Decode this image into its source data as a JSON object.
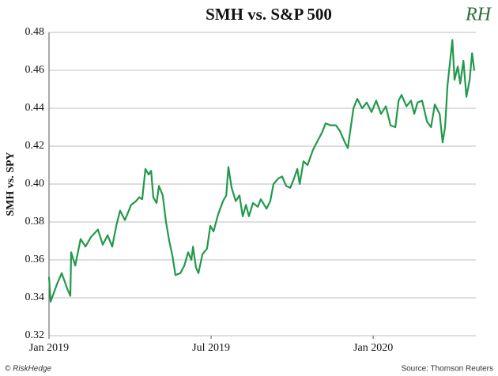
{
  "chart_data": {
    "type": "line",
    "title": "SMH vs. S&P 500",
    "y_label": "SMH vs. SPY",
    "color": "#22994a",
    "grid": true,
    "x": [
      0,
      0.06,
      0.29,
      0.47,
      0.67,
      0.79,
      0.82,
      0.97,
      1.17,
      1.35,
      1.55,
      1.81,
      1.99,
      2.17,
      2.34,
      2.49,
      2.63,
      2.81,
      3.04,
      3.22,
      3.34,
      3.45,
      3.57,
      3.69,
      3.78,
      3.86,
      3.98,
      4.07,
      4.21,
      4.33,
      4.45,
      4.57,
      4.68,
      4.86,
      5.01,
      5.15,
      5.27,
      5.33,
      5.44,
      5.53,
      5.68,
      5.85,
      5.97,
      6.09,
      6.26,
      6.44,
      6.56,
      6.64,
      6.76,
      6.91,
      7.05,
      7.17,
      7.29,
      7.4,
      7.55,
      7.73,
      7.84,
      8.05,
      8.19,
      8.31,
      8.49,
      8.63,
      8.78,
      8.93,
      9.07,
      9.19,
      9.28,
      9.42,
      9.57,
      9.77,
      9.95,
      10.1,
      10.24,
      10.42,
      10.62,
      10.77,
      10.95,
      11.06,
      11.27,
      11.41,
      11.59,
      11.76,
      11.94,
      12.11,
      12.29,
      12.47,
      12.64,
      12.82,
      12.94,
      13.05,
      13.23,
      13.4,
      13.52,
      13.64,
      13.81,
      13.99,
      14.14,
      14.28,
      14.46,
      14.57,
      14.66,
      14.75,
      14.84,
      14.93,
      15.01,
      15.13,
      15.22,
      15.34,
      15.45,
      15.57,
      15.66,
      15.74
    ],
    "values": [
      0.351,
      0.338,
      0.347,
      0.353,
      0.345,
      0.341,
      0.364,
      0.357,
      0.371,
      0.367,
      0.372,
      0.376,
      0.368,
      0.373,
      0.367,
      0.378,
      0.386,
      0.381,
      0.389,
      0.391,
      0.393,
      0.392,
      0.408,
      0.405,
      0.407,
      0.393,
      0.39,
      0.399,
      0.394,
      0.38,
      0.37,
      0.362,
      0.352,
      0.353,
      0.357,
      0.364,
      0.36,
      0.367,
      0.356,
      0.353,
      0.363,
      0.366,
      0.378,
      0.375,
      0.384,
      0.391,
      0.394,
      0.409,
      0.398,
      0.391,
      0.394,
      0.383,
      0.389,
      0.383,
      0.39,
      0.388,
      0.392,
      0.387,
      0.391,
      0.4,
      0.403,
      0.404,
      0.399,
      0.398,
      0.403,
      0.408,
      0.4,
      0.412,
      0.41,
      0.418,
      0.423,
      0.427,
      0.432,
      0.431,
      0.431,
      0.428,
      0.422,
      0.419,
      0.44,
      0.445,
      0.44,
      0.443,
      0.438,
      0.444,
      0.437,
      0.441,
      0.431,
      0.43,
      0.444,
      0.447,
      0.441,
      0.444,
      0.437,
      0.443,
      0.444,
      0.433,
      0.43,
      0.442,
      0.437,
      0.422,
      0.43,
      0.452,
      0.464,
      0.476,
      0.455,
      0.462,
      0.453,
      0.465,
      0.446,
      0.455,
      0.469,
      0.46
    ],
    "xlim": [
      0,
      15.8
    ],
    "xticks": [
      {
        "value": 0,
        "label": "Jan 2019"
      },
      {
        "value": 6,
        "label": "Jul 2019"
      },
      {
        "value": 12,
        "label": "Jan 2020"
      }
    ],
    "ylim": [
      0.32,
      0.48
    ],
    "yticks": [
      0.32,
      0.34,
      0.36,
      0.38,
      {
        "value": 0.4,
        "label": "0.40"
      },
      0.42,
      0.44,
      0.46,
      0.48
    ]
  },
  "logo": "RH",
  "footer": {
    "left": "© RiskHedge",
    "right": "Source: Thomson Reuters"
  }
}
